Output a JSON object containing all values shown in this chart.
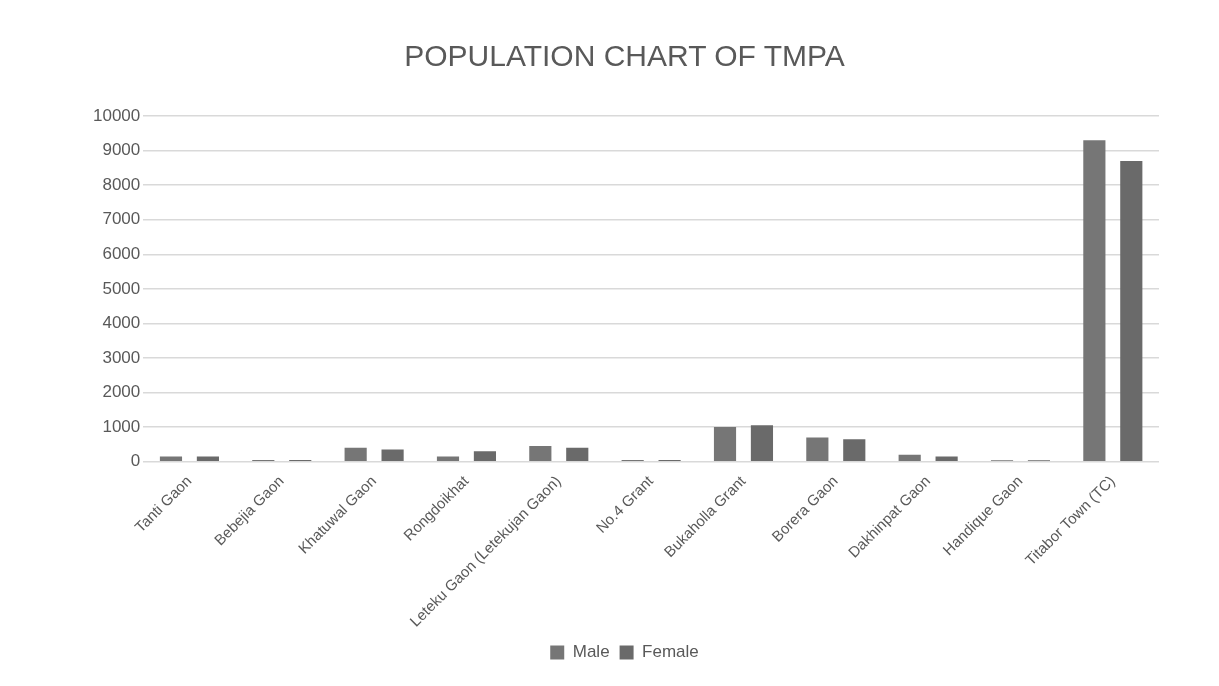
{
  "chart_data": {
    "type": "bar",
    "title": "POPULATION CHART OF TMPA",
    "categories": [
      "Tanti Gaon",
      "Bebejia Gaon",
      "Khatuwal Gaon",
      "Rongdoikhat",
      "Leteku Gaon (Letekujan Gaon)",
      "No.4 Grant",
      "Bukaholla Grant",
      "Borera Gaon",
      "Dakhinpat Gaon",
      "Handique Gaon",
      "Titabor Town (TC)"
    ],
    "series": [
      {
        "name": "Male",
        "color": "#767676",
        "values": [
          150,
          50,
          400,
          150,
          450,
          50,
          1000,
          700,
          200,
          40,
          9300
        ]
      },
      {
        "name": "Female",
        "color": "#6a6a6a",
        "values": [
          150,
          50,
          350,
          300,
          400,
          50,
          1050,
          650,
          150,
          40,
          8700
        ]
      }
    ],
    "ylim": [
      0,
      10000
    ],
    "yticks": [
      0,
      1000,
      2000,
      3000,
      4000,
      5000,
      6000,
      7000,
      8000,
      9000,
      10000
    ],
    "grid": "y",
    "legend": "bottom"
  }
}
